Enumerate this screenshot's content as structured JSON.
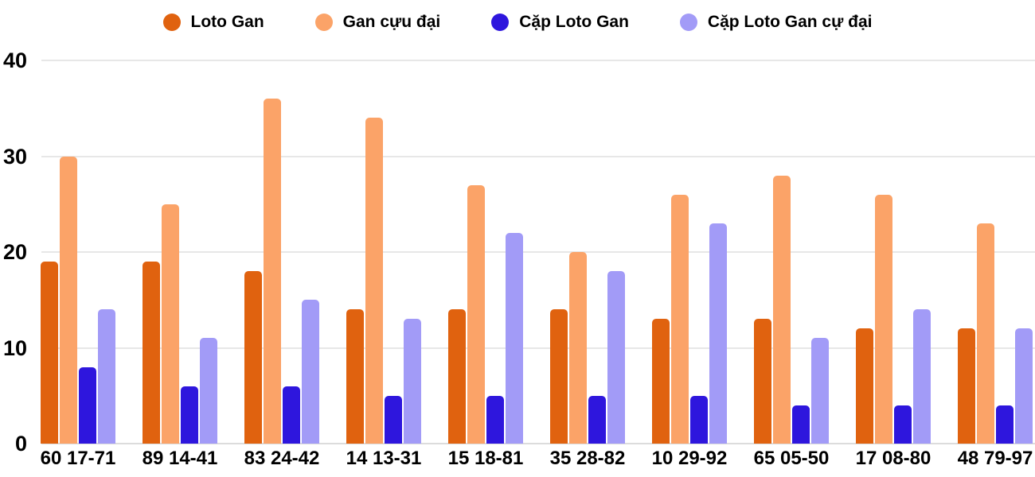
{
  "colors": {
    "background": "#ffffff",
    "grid": "#e7e7e7",
    "baseline": "#dcdcdc",
    "text": "#000000"
  },
  "chart_data": {
    "type": "bar",
    "title": "",
    "xlabel": "",
    "ylabel": "",
    "legend_position": "top",
    "grid": true,
    "ylim": [
      0,
      40
    ],
    "y_ticks": [
      0,
      10,
      20,
      30,
      40
    ],
    "categories": [
      "60 17-71",
      "89 14-41",
      "83 24-42",
      "14 13-31",
      "15 18-81",
      "35 28-82",
      "10 29-92",
      "65 05-50",
      "17 08-80",
      "48 79-97"
    ],
    "series": [
      {
        "name": "Loto Gan",
        "color": "#e0620f",
        "icon": "circle-icon",
        "values": [
          19,
          19,
          18,
          14,
          14,
          14,
          13,
          13,
          12,
          12
        ]
      },
      {
        "name": "Gan cựu đại",
        "color": "#fba368",
        "icon": "circle-icon",
        "values": [
          30,
          25,
          36,
          34,
          27,
          20,
          26,
          28,
          26,
          23
        ]
      },
      {
        "name": "Cặp Loto Gan",
        "color": "#2e16dd",
        "icon": "circle-icon",
        "values": [
          8,
          6,
          6,
          5,
          5,
          5,
          5,
          4,
          4,
          4
        ]
      },
      {
        "name": "Cặp Loto Gan cự đại",
        "color": "#a29bf7",
        "icon": "circle-icon",
        "values": [
          14,
          11,
          15,
          13,
          22,
          18,
          23,
          11,
          14,
          12
        ]
      }
    ]
  }
}
